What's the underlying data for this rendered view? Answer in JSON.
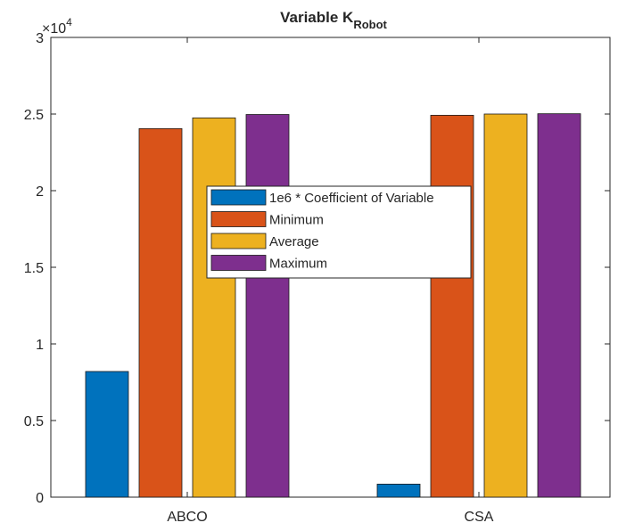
{
  "chart_data": {
    "type": "bar",
    "title": "Variable K",
    "title_subscript": "Robot",
    "xlabel": "",
    "ylabel": "",
    "exponent_label": "×10",
    "exponent_power": "4",
    "categories": [
      "ABCO",
      "CSA"
    ],
    "series": [
      {
        "name": "1e6 * Coefficient of Variable",
        "color": "#0072BD",
        "values": [
          8200,
          850
        ]
      },
      {
        "name": "Minimum",
        "color": "#D95319",
        "values": [
          24050,
          24920
        ]
      },
      {
        "name": "Average",
        "color": "#EDB120",
        "values": [
          24750,
          25000
        ]
      },
      {
        "name": "Maximum",
        "color": "#7E2F8E",
        "values": [
          24970,
          25020
        ]
      }
    ],
    "ylim": [
      0,
      30000
    ],
    "yticks": [
      0,
      5000,
      10000,
      15000,
      20000,
      25000,
      30000
    ],
    "ytick_labels": [
      "0",
      "0.5",
      "1",
      "1.5",
      "2",
      "2.5",
      "3"
    ],
    "legend_position": "center",
    "grid": false
  }
}
